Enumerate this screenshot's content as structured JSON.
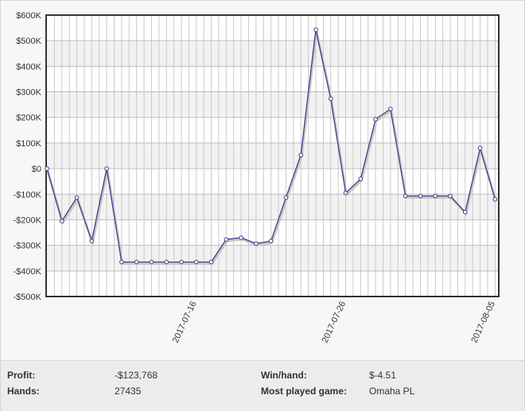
{
  "chart_data": {
    "type": "line",
    "title": "",
    "xlabel": "",
    "ylabel": "",
    "ylim": [
      -500000,
      600000
    ],
    "y_ticks": [
      {
        "value": 600000,
        "label": "$600K"
      },
      {
        "value": 500000,
        "label": "$500K"
      },
      {
        "value": 400000,
        "label": "$400K"
      },
      {
        "value": 300000,
        "label": "$300K"
      },
      {
        "value": 200000,
        "label": "$200K"
      },
      {
        "value": 100000,
        "label": "$100K"
      },
      {
        "value": 0,
        "label": "$0"
      },
      {
        "value": -100000,
        "label": "-$100K"
      },
      {
        "value": -200000,
        "label": "-$200K"
      },
      {
        "value": -300000,
        "label": "-$300K"
      },
      {
        "value": -400000,
        "label": "-$400K"
      },
      {
        "value": -500000,
        "label": "-$500K"
      }
    ],
    "x_tick_labels": [
      {
        "index": 10,
        "label": "2017-07-16"
      },
      {
        "index": 20,
        "label": "2017-07-26"
      },
      {
        "index": 30,
        "label": "2017-08-05"
      }
    ],
    "grid": true,
    "line_color": "#3d3d8c",
    "series": [
      {
        "name": "",
        "values": [
          0,
          -205000,
          -113000,
          -283000,
          0,
          -365000,
          -365000,
          -365000,
          -365000,
          -365000,
          -365000,
          -365000,
          -277000,
          -270000,
          -293000,
          -283000,
          -113000,
          53000,
          543000,
          273000,
          -95000,
          -40000,
          193000,
          233000,
          -107000,
          -107000,
          -107000,
          -107000,
          -170000,
          80000,
          -120000
        ]
      }
    ]
  },
  "stats": {
    "profit_label": "Profit:",
    "profit_value": "-$123,768",
    "hands_label": "Hands:",
    "hands_value": "27435",
    "winhand_label": "Win/hand:",
    "winhand_value": "$-4.51",
    "game_label": "Most played game:",
    "game_value": "Omaha PL"
  }
}
